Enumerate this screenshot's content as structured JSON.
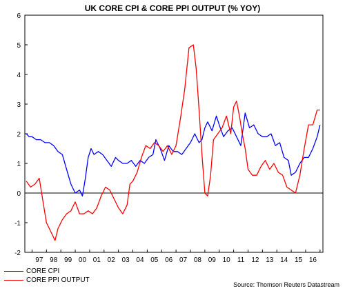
{
  "chart_data": {
    "type": "line",
    "title": "UK CORE CPI & CORE PPI OUTPUT (% YOY)",
    "ylim": [
      -2,
      6
    ],
    "yticks": [
      "6",
      "5",
      "4",
      "3",
      "2",
      "1",
      "0",
      "-1",
      "-2"
    ],
    "xlim": [
      1996.5,
      2017.2
    ],
    "xtick_labels": [
      "97",
      "98",
      "99",
      "00",
      "01",
      "02",
      "03",
      "04",
      "05",
      "06",
      "07",
      "08",
      "09",
      "10",
      "11",
      "12",
      "13",
      "14",
      "15",
      "16"
    ],
    "grid": false,
    "zero_line": true,
    "legend_position": "bottom-left",
    "series": [
      {
        "name": "CORE CPI",
        "color": "#0000ff",
        "x": [
          1996.6,
          1996.8,
          1997.0,
          1997.3,
          1997.6,
          1997.9,
          1998.2,
          1998.5,
          1998.8,
          1999.1,
          1999.4,
          1999.7,
          2000.0,
          2000.3,
          2000.5,
          2000.7,
          2000.9,
          2001.1,
          2001.3,
          2001.6,
          2001.9,
          2002.2,
          2002.5,
          2002.8,
          2003.0,
          2003.3,
          2003.6,
          2003.9,
          2004.2,
          2004.5,
          2004.8,
          2005.1,
          2005.4,
          2005.6,
          2005.9,
          2006.2,
          2006.5,
          2006.8,
          2007.1,
          2007.4,
          2007.7,
          2008.0,
          2008.3,
          2008.6,
          2008.8,
          2009.0,
          2009.2,
          2009.5,
          2009.8,
          2010.0,
          2010.3,
          2010.6,
          2010.9,
          2011.2,
          2011.5,
          2011.8,
          2012.1,
          2012.4,
          2012.7,
          2013.0,
          2013.3,
          2013.6,
          2013.9,
          2014.2,
          2014.5,
          2014.8,
          2015.0,
          2015.3,
          2015.6,
          2015.9,
          2016.2,
          2016.5,
          2016.8,
          2017.0
        ],
        "values": [
          2.0,
          1.9,
          1.9,
          1.8,
          1.8,
          1.7,
          1.7,
          1.6,
          1.4,
          1.3,
          0.8,
          0.3,
          0.0,
          0.1,
          -0.1,
          0.5,
          1.2,
          1.5,
          1.3,
          1.4,
          1.3,
          1.1,
          0.9,
          1.2,
          1.1,
          1.0,
          1.0,
          1.1,
          0.9,
          1.1,
          1.0,
          1.2,
          1.3,
          1.8,
          1.5,
          1.1,
          1.6,
          1.4,
          1.4,
          1.3,
          1.5,
          1.7,
          2.0,
          1.7,
          1.8,
          2.2,
          2.4,
          2.1,
          2.6,
          2.3,
          1.9,
          2.1,
          2.2,
          1.9,
          1.6,
          2.7,
          2.2,
          2.3,
          2.0,
          1.9,
          1.9,
          2.0,
          1.6,
          1.7,
          1.2,
          1.1,
          0.6,
          0.7,
          1.0,
          1.2,
          1.2,
          1.5,
          1.9,
          2.3
        ]
      },
      {
        "name": "CORE PPI OUTPUT",
        "color": "#ff0000",
        "x": [
          1996.6,
          1996.9,
          1997.2,
          1997.5,
          1997.8,
          1998.0,
          1998.3,
          1998.6,
          1998.8,
          1999.1,
          1999.4,
          1999.7,
          2000.0,
          2000.3,
          2000.6,
          2000.9,
          2001.2,
          2001.5,
          2001.8,
          2002.1,
          2002.4,
          2002.7,
          2003.0,
          2003.3,
          2003.6,
          2003.8,
          2004.0,
          2004.3,
          2004.6,
          2004.9,
          2005.2,
          2005.5,
          2005.8,
          2006.1,
          2006.4,
          2006.7,
          2007.0,
          2007.3,
          2007.6,
          2007.9,
          2008.2,
          2008.4,
          2008.6,
          2008.8,
          2009.0,
          2009.2,
          2009.4,
          2009.6,
          2009.9,
          2010.2,
          2010.5,
          2010.8,
          2011.0,
          2011.2,
          2011.4,
          2011.6,
          2011.8,
          2012.0,
          2012.3,
          2012.6,
          2012.9,
          2013.2,
          2013.5,
          2013.8,
          2014.1,
          2014.4,
          2014.7,
          2015.0,
          2015.3,
          2015.6,
          2015.9,
          2016.2,
          2016.5,
          2016.8,
          2017.0
        ],
        "values": [
          0.4,
          0.2,
          0.3,
          0.5,
          -0.4,
          -1.0,
          -1.3,
          -1.6,
          -1.2,
          -0.9,
          -0.7,
          -0.6,
          -0.3,
          -0.7,
          -0.7,
          -0.6,
          -0.7,
          -0.5,
          -0.1,
          0.2,
          0.1,
          -0.2,
          -0.5,
          -0.7,
          -0.4,
          0.3,
          0.4,
          0.7,
          1.2,
          1.6,
          1.5,
          1.7,
          1.6,
          1.4,
          1.6,
          1.3,
          1.6,
          2.5,
          3.5,
          4.9,
          5.0,
          4.2,
          2.8,
          1.3,
          0.0,
          -0.1,
          0.6,
          1.8,
          2.0,
          2.2,
          2.6,
          2.0,
          2.9,
          3.1,
          2.6,
          2.0,
          1.5,
          0.8,
          0.6,
          0.6,
          0.9,
          1.1,
          0.8,
          1.0,
          0.7,
          0.6,
          0.2,
          0.1,
          0.0,
          0.6,
          1.5,
          2.3,
          2.3,
          2.8,
          2.8
        ]
      }
    ],
    "source": "Source: Thomson Reuters Datastream"
  }
}
